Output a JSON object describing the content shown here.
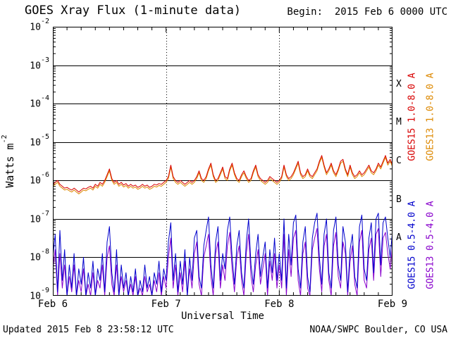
{
  "header": {
    "title": "GOES Xray Flux (1-minute data)",
    "begin_label": "Begin:  2015 Feb 6 0000 UTC"
  },
  "footer": {
    "updated": "Updated 2015 Feb 8 23:58:12 UTC",
    "credit": "NOAA/SWPC Boulder, CO USA"
  },
  "colors": {
    "background": "#ffffff",
    "axis": "#000000",
    "goes15_long": "#d80000",
    "goes15_short": "#0000cc",
    "goes13_long": "#dd8800",
    "goes13_short": "#8800cc"
  },
  "chart_data": {
    "type": "line",
    "title": "GOES Xray Flux (1-minute data)",
    "xlabel": "Universal Time",
    "ylabel_base": "Watts m",
    "ylabel_exponent": "-2",
    "y_scale": "log10",
    "ylim_log10": [
      -9,
      -2
    ],
    "y_tick_exponents": [
      -2,
      -3,
      -4,
      -5,
      -6,
      -7,
      -8,
      -9
    ],
    "x_unit": "hours since 2015 Feb 6 0000 UTC",
    "x_range_hours": [
      0,
      72
    ],
    "x_sample_step_hours": 0.5,
    "x_ticks": [
      {
        "label": "Feb 6",
        "hours": 0
      },
      {
        "label": "Feb 7",
        "hours": 24
      },
      {
        "label": "Feb 8",
        "hours": 48
      },
      {
        "label": "Feb 9",
        "hours": 72
      }
    ],
    "x_minor_tick_hours": 3,
    "day_gridlines_hours": [
      24,
      48
    ],
    "grid": "horizontal solid line per decade, vertical dotted line per day boundary",
    "legend_position": "right edge, rotated labels",
    "flare_classes": [
      {
        "label": "X",
        "log10_center": -3.5
      },
      {
        "label": "M",
        "log10_center": -4.5
      },
      {
        "label": "C",
        "log10_center": -5.5
      },
      {
        "label": "B",
        "log10_center": -6.5
      },
      {
        "label": "A",
        "log10_center": -7.5
      }
    ],
    "series": [
      {
        "name": "GOES13 0.5-4.0 A",
        "satellite": "GOES13",
        "wavelength": "0.5-4.0 A",
        "color": "#8800cc",
        "legend": {
          "column": "outer",
          "row": "lower"
        },
        "log10_values": [
          -8.3,
          -7.8,
          -9.0,
          -7.9,
          -8.8,
          -8.2,
          -9.0,
          -8.5,
          -8.9,
          -8.2,
          -9.0,
          -8.6,
          -8.9,
          -8.3,
          -9.0,
          -8.7,
          -9.0,
          -8.4,
          -9.0,
          -8.6,
          -8.8,
          -8.2,
          -9.0,
          -8.0,
          -7.7,
          -8.7,
          -9.0,
          -8.2,
          -9.0,
          -8.5,
          -8.9,
          -8.6,
          -9.0,
          -8.7,
          -9.0,
          -8.5,
          -9.0,
          -8.8,
          -9.0,
          -8.5,
          -8.9,
          -8.7,
          -9.0,
          -8.6,
          -8.9,
          -8.4,
          -9.0,
          -8.5,
          -8.8,
          -8.0,
          -7.5,
          -8.8,
          -8.2,
          -9.0,
          -8.4,
          -8.9,
          -8.1,
          -9.0,
          -8.3,
          -8.8,
          -7.9,
          -7.6,
          -8.7,
          -9.0,
          -8.0,
          -7.7,
          -7.4,
          -8.5,
          -9.0,
          -7.9,
          -7.6,
          -8.8,
          -8.2,
          -8.6,
          -7.7,
          -7.35,
          -8.3,
          -8.9,
          -8.0,
          -7.7,
          -8.6,
          -9.0,
          -7.9,
          -7.4,
          -8.5,
          -8.9,
          -8.2,
          -7.8,
          -8.7,
          -8.3,
          -7.9,
          -9.0,
          -8.1,
          -8.6,
          -7.9,
          -8.8,
          -8.2,
          -8.8,
          -7.4,
          -9.0,
          -7.8,
          -8.5,
          -7.5,
          -7.3,
          -8.6,
          -9.0,
          -7.9,
          -7.6,
          -8.8,
          -9.0,
          -7.8,
          -7.5,
          -7.25,
          -8.3,
          -8.9,
          -7.7,
          -7.4,
          -8.6,
          -9.0,
          -7.7,
          -7.35,
          -8.5,
          -8.8,
          -7.6,
          -7.9,
          -9.0,
          -8.1,
          -7.7,
          -8.7,
          -9.0,
          -7.6,
          -7.3,
          -8.6,
          -8.8,
          -7.8,
          -7.5,
          -8.6,
          -7.4,
          -7.25,
          -8.5,
          -7.5,
          -7.35,
          -7.9,
          -8.3,
          -7.7
        ]
      },
      {
        "name": "GOES15 0.5-4.0 A",
        "satellite": "GOES15",
        "wavelength": "0.5-4.0 A",
        "color": "#0000cc",
        "legend": {
          "column": "inner",
          "row": "lower"
        },
        "log10_values": [
          -8.0,
          -7.4,
          -8.9,
          -7.3,
          -8.6,
          -7.8,
          -9.0,
          -8.2,
          -8.8,
          -7.9,
          -9.0,
          -8.3,
          -8.7,
          -8.0,
          -9.0,
          -8.4,
          -8.8,
          -8.1,
          -9.0,
          -8.3,
          -8.6,
          -7.9,
          -8.9,
          -7.6,
          -7.2,
          -8.4,
          -8.9,
          -7.8,
          -9.0,
          -8.2,
          -8.8,
          -8.4,
          -9.0,
          -8.5,
          -8.9,
          -8.3,
          -9.0,
          -8.6,
          -8.9,
          -8.2,
          -8.8,
          -8.5,
          -9.0,
          -8.4,
          -8.7,
          -8.1,
          -8.9,
          -8.3,
          -8.6,
          -7.6,
          -7.1,
          -8.6,
          -7.9,
          -8.9,
          -8.1,
          -8.7,
          -7.8,
          -9.0,
          -8.0,
          -8.6,
          -7.5,
          -7.3,
          -8.5,
          -8.8,
          -7.7,
          -7.3,
          -6.95,
          -8.2,
          -8.8,
          -7.6,
          -7.2,
          -8.6,
          -7.9,
          -8.3,
          -7.3,
          -6.95,
          -8.0,
          -8.7,
          -7.7,
          -7.3,
          -8.4,
          -8.8,
          -7.6,
          -7.0,
          -8.2,
          -8.7,
          -7.9,
          -7.4,
          -8.5,
          -8.0,
          -7.6,
          -8.8,
          -7.8,
          -8.4,
          -7.5,
          -8.6,
          -7.9,
          -8.6,
          -7.0,
          -8.8,
          -7.4,
          -8.2,
          -7.1,
          -6.9,
          -8.3,
          -8.8,
          -7.6,
          -7.2,
          -8.5,
          -8.9,
          -7.5,
          -7.1,
          -6.85,
          -8.0,
          -8.7,
          -7.4,
          -7.0,
          -8.4,
          -8.8,
          -7.3,
          -6.95,
          -8.2,
          -8.6,
          -7.2,
          -7.6,
          -8.9,
          -7.8,
          -7.4,
          -8.5,
          -8.8,
          -7.2,
          -6.9,
          -8.3,
          -8.6,
          -7.5,
          -7.1,
          -8.4,
          -7.0,
          -6.85,
          -8.2,
          -7.1,
          -6.95,
          -7.5,
          -8.0,
          -7.3
        ]
      },
      {
        "name": "GOES13 1.0-8.0 A",
        "satellite": "GOES13",
        "wavelength": "1.0-8.0 A",
        "color": "#dd8800",
        "legend": {
          "column": "outer",
          "row": "upper"
        },
        "derived": {
          "from": "GOES15 1.0-8.0 A",
          "log10_offset": -0.05
        },
        "note": "trace nearly coincident with GOES15 long channel, mostly hidden behind it"
      },
      {
        "name": "GOES15 1.0-8.0 A",
        "satellite": "GOES15",
        "wavelength": "1.0-8.0 A",
        "color": "#d80000",
        "legend": {
          "column": "inner",
          "row": "upper"
        },
        "log10_values": [
          -6.1,
          -6.05,
          -6.0,
          -6.1,
          -6.15,
          -6.2,
          -6.18,
          -6.22,
          -6.25,
          -6.2,
          -6.25,
          -6.3,
          -6.25,
          -6.2,
          -6.22,
          -6.18,
          -6.15,
          -6.2,
          -6.1,
          -6.15,
          -6.05,
          -6.1,
          -6.0,
          -5.85,
          -5.7,
          -5.95,
          -6.05,
          -6.0,
          -6.1,
          -6.05,
          -6.12,
          -6.08,
          -6.15,
          -6.1,
          -6.15,
          -6.12,
          -6.18,
          -6.15,
          -6.1,
          -6.15,
          -6.12,
          -6.18,
          -6.15,
          -6.1,
          -6.12,
          -6.08,
          -6.1,
          -6.05,
          -6.0,
          -5.9,
          -5.6,
          -5.9,
          -6.0,
          -6.05,
          -6.0,
          -6.05,
          -6.1,
          -6.05,
          -6.0,
          -6.05,
          -6.0,
          -5.9,
          -5.75,
          -5.95,
          -6.0,
          -5.9,
          -5.7,
          -5.55,
          -5.85,
          -6.0,
          -5.95,
          -5.8,
          -5.65,
          -5.9,
          -5.95,
          -5.7,
          -5.55,
          -5.8,
          -5.95,
          -6.0,
          -5.85,
          -5.75,
          -5.9,
          -6.0,
          -5.95,
          -5.75,
          -5.6,
          -5.85,
          -5.95,
          -6.0,
          -6.05,
          -6.0,
          -5.9,
          -5.95,
          -6.0,
          -6.05,
          -6.0,
          -5.9,
          -5.6,
          -5.85,
          -5.95,
          -5.9,
          -5.8,
          -5.65,
          -5.5,
          -5.8,
          -5.9,
          -5.85,
          -5.7,
          -5.85,
          -5.9,
          -5.8,
          -5.7,
          -5.5,
          -5.35,
          -5.6,
          -5.8,
          -5.7,
          -5.55,
          -5.75,
          -5.85,
          -5.7,
          -5.5,
          -5.45,
          -5.7,
          -5.85,
          -5.6,
          -5.8,
          -5.9,
          -5.85,
          -5.75,
          -5.85,
          -5.8,
          -5.7,
          -5.6,
          -5.75,
          -5.8,
          -5.7,
          -5.55,
          -5.65,
          -5.5,
          -5.35,
          -5.55,
          -5.45,
          -5.6
        ]
      }
    ]
  }
}
